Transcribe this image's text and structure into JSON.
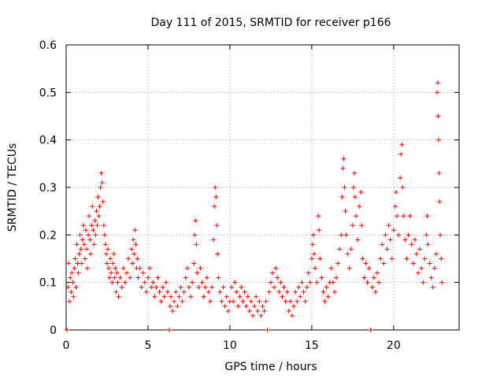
{
  "chart_data": {
    "type": "scatter",
    "title": "Day 111 of 2015, SRMTID for receiver p166",
    "xlabel": "GPS time / hours",
    "ylabel": "SRMTID / TECUs",
    "xlim": [
      0,
      24
    ],
    "ylim": [
      0,
      0.6
    ],
    "x_ticks": [
      0,
      5,
      10,
      15,
      20
    ],
    "x_tick_labels": [
      "0",
      "5",
      "10",
      "15",
      "20"
    ],
    "y_ticks": [
      0,
      0.1,
      0.2,
      0.3,
      0.4,
      0.5,
      0.6
    ],
    "y_tick_labels": [
      "0",
      "0.1",
      "0.2",
      "0.3",
      "0.4",
      "0.5",
      "0.6"
    ],
    "grid": true,
    "marker": "+",
    "marker_color": "#ff0000",
    "series": [
      {
        "name": "SRMTID",
        "points": [
          [
            0.05,
            0.0
          ],
          [
            0.1,
            0.09
          ],
          [
            0.15,
            0.14
          ],
          [
            0.2,
            0.06
          ],
          [
            0.25,
            0.11
          ],
          [
            0.3,
            0.08
          ],
          [
            0.35,
            0.12
          ],
          [
            0.4,
            0.1
          ],
          [
            0.45,
            0.07
          ],
          [
            0.5,
            0.13
          ],
          [
            0.55,
            0.15
          ],
          [
            0.6,
            0.09
          ],
          [
            0.65,
            0.18
          ],
          [
            0.7,
            0.14
          ],
          [
            0.75,
            0.12
          ],
          [
            0.8,
            0.16
          ],
          [
            0.85,
            0.2
          ],
          [
            0.9,
            0.17
          ],
          [
            0.95,
            0.14
          ],
          [
            1.0,
            0.19
          ],
          [
            1.05,
            0.22
          ],
          [
            1.1,
            0.18
          ],
          [
            1.15,
            0.15
          ],
          [
            1.2,
            0.21
          ],
          [
            1.25,
            0.17
          ],
          [
            1.3,
            0.13
          ],
          [
            1.35,
            0.2
          ],
          [
            1.4,
            0.24
          ],
          [
            1.45,
            0.19
          ],
          [
            1.5,
            0.16
          ],
          [
            1.55,
            0.22
          ],
          [
            1.6,
            0.26
          ],
          [
            1.65,
            0.21
          ],
          [
            1.7,
            0.18
          ],
          [
            1.75,
            0.23
          ],
          [
            1.8,
            0.2
          ],
          [
            1.85,
            0.25
          ],
          [
            1.9,
            0.22
          ],
          [
            1.95,
            0.28
          ],
          [
            2.0,
            0.24
          ],
          [
            2.05,
            0.26
          ],
          [
            2.1,
            0.3
          ],
          [
            2.15,
            0.33
          ],
          [
            2.2,
            0.31
          ],
          [
            2.25,
            0.27
          ],
          [
            2.3,
            0.22
          ],
          [
            2.35,
            0.2
          ],
          [
            2.4,
            0.18
          ],
          [
            2.45,
            0.16
          ],
          [
            2.5,
            0.14
          ],
          [
            2.55,
            0.17
          ],
          [
            2.6,
            0.13
          ],
          [
            2.65,
            0.11
          ],
          [
            2.7,
            0.15
          ],
          [
            2.75,
            0.12
          ],
          [
            2.8,
            0.1
          ],
          [
            2.85,
            0.14
          ],
          [
            2.9,
            0.16
          ],
          [
            2.95,
            0.11
          ],
          [
            3.0,
            0.13
          ],
          [
            3.05,
            0.08
          ],
          [
            3.1,
            0.12
          ],
          [
            3.15,
            0.1
          ],
          [
            3.2,
            0.07
          ],
          [
            3.3,
            0.11
          ],
          [
            3.4,
            0.09
          ],
          [
            3.5,
            0.13
          ],
          [
            3.6,
            0.1
          ],
          [
            3.7,
            0.12
          ],
          [
            3.8,
            0.15
          ],
          [
            3.9,
            0.11
          ],
          [
            4.0,
            0.17
          ],
          [
            4.05,
            0.14
          ],
          [
            4.1,
            0.19
          ],
          [
            4.15,
            0.16
          ],
          [
            4.2,
            0.21
          ],
          [
            4.25,
            0.18
          ],
          [
            4.3,
            0.13
          ],
          [
            4.35,
            0.15
          ],
          [
            4.4,
            0.11
          ],
          [
            4.5,
            0.13
          ],
          [
            4.6,
            0.09
          ],
          [
            4.7,
            0.12
          ],
          [
            4.8,
            0.1
          ],
          [
            4.9,
            0.08
          ],
          [
            5.0,
            0.11
          ],
          [
            5.1,
            0.13
          ],
          [
            5.2,
            0.09
          ],
          [
            5.3,
            0.1
          ],
          [
            5.4,
            0.07
          ],
          [
            5.5,
            0.09
          ],
          [
            5.6,
            0.11
          ],
          [
            5.7,
            0.08
          ],
          [
            5.8,
            0.06
          ],
          [
            5.9,
            0.09
          ],
          [
            6.0,
            0.07
          ],
          [
            6.1,
            0.1
          ],
          [
            6.2,
            0.08
          ],
          [
            6.3,
            0.0
          ],
          [
            6.35,
            0.05
          ],
          [
            6.4,
            0.07
          ],
          [
            6.5,
            0.04
          ],
          [
            6.6,
            0.06
          ],
          [
            6.7,
            0.08
          ],
          [
            6.8,
            0.05
          ],
          [
            6.9,
            0.07
          ],
          [
            7.0,
            0.09
          ],
          [
            7.1,
            0.06
          ],
          [
            7.2,
            0.08
          ],
          [
            7.3,
            0.11
          ],
          [
            7.4,
            0.13
          ],
          [
            7.5,
            0.09
          ],
          [
            7.6,
            0.07
          ],
          [
            7.7,
            0.1
          ],
          [
            7.8,
            0.14
          ],
          [
            7.85,
            0.2
          ],
          [
            7.9,
            0.23
          ],
          [
            7.95,
            0.18
          ],
          [
            8.0,
            0.12
          ],
          [
            8.1,
            0.09
          ],
          [
            8.2,
            0.13
          ],
          [
            8.3,
            0.1
          ],
          [
            8.4,
            0.07
          ],
          [
            8.5,
            0.09
          ],
          [
            8.6,
            0.11
          ],
          [
            8.7,
            0.08
          ],
          [
            8.8,
            0.06
          ],
          [
            8.9,
            0.09
          ],
          [
            9.0,
            0.19
          ],
          [
            9.05,
            0.26
          ],
          [
            9.1,
            0.3
          ],
          [
            9.15,
            0.28
          ],
          [
            9.2,
            0.22
          ],
          [
            9.25,
            0.16
          ],
          [
            9.3,
            0.11
          ],
          [
            9.4,
            0.08
          ],
          [
            9.5,
            0.06
          ],
          [
            9.6,
            0.09
          ],
          [
            9.7,
            0.05
          ],
          [
            9.8,
            0.07
          ],
          [
            9.9,
            0.04
          ],
          [
            10.0,
            0.06
          ],
          [
            10.1,
            0.09
          ],
          [
            10.2,
            0.06
          ],
          [
            10.3,
            0.1
          ],
          [
            10.4,
            0.08
          ],
          [
            10.5,
            0.05
          ],
          [
            10.6,
            0.07
          ],
          [
            10.7,
            0.09
          ],
          [
            10.8,
            0.06
          ],
          [
            10.9,
            0.08
          ],
          [
            11.0,
            0.05
          ],
          [
            11.1,
            0.07
          ],
          [
            11.2,
            0.04
          ],
          [
            11.3,
            0.06
          ],
          [
            11.4,
            0.03
          ],
          [
            11.5,
            0.05
          ],
          [
            11.6,
            0.07
          ],
          [
            11.7,
            0.04
          ],
          [
            11.8,
            0.06
          ],
          [
            11.9,
            0.03
          ],
          [
            12.0,
            0.05
          ],
          [
            12.1,
            0.04
          ],
          [
            12.2,
            0.06
          ],
          [
            12.3,
            0.0
          ],
          [
            12.4,
            0.08
          ],
          [
            12.5,
            0.1
          ],
          [
            12.6,
            0.12
          ],
          [
            12.7,
            0.09
          ],
          [
            12.8,
            0.13
          ],
          [
            12.9,
            0.11
          ],
          [
            13.0,
            0.08
          ],
          [
            13.1,
            0.1
          ],
          [
            13.2,
            0.07
          ],
          [
            13.3,
            0.09
          ],
          [
            13.4,
            0.06
          ],
          [
            13.5,
            0.08
          ],
          [
            13.6,
            0.04
          ],
          [
            13.7,
            0.06
          ],
          [
            13.8,
            0.03
          ],
          [
            13.9,
            0.05
          ],
          [
            14.0,
            0.08
          ],
          [
            14.1,
            0.06
          ],
          [
            14.2,
            0.09
          ],
          [
            14.3,
            0.07
          ],
          [
            14.4,
            0.1
          ],
          [
            14.5,
            0.08
          ],
          [
            14.6,
            0.06
          ],
          [
            14.7,
            0.09
          ],
          [
            14.8,
            0.12
          ],
          [
            14.9,
            0.1
          ],
          [
            15.0,
            0.15
          ],
          [
            15.05,
            0.18
          ],
          [
            15.1,
            0.2
          ],
          [
            15.15,
            0.16
          ],
          [
            15.2,
            0.13
          ],
          [
            15.3,
            0.1
          ],
          [
            15.4,
            0.24
          ],
          [
            15.45,
            0.21
          ],
          [
            15.5,
            0.15
          ],
          [
            15.6,
            0.11
          ],
          [
            15.7,
            0.08
          ],
          [
            15.8,
            0.06
          ],
          [
            15.9,
            0.09
          ],
          [
            16.0,
            0.07
          ],
          [
            16.1,
            0.1
          ],
          [
            16.2,
            0.13
          ],
          [
            16.3,
            0.1
          ],
          [
            16.4,
            0.08
          ],
          [
            16.5,
            0.11
          ],
          [
            16.6,
            0.14
          ],
          [
            16.7,
            0.17
          ],
          [
            16.8,
            0.2
          ],
          [
            16.85,
            0.28
          ],
          [
            16.9,
            0.34
          ],
          [
            16.95,
            0.36
          ],
          [
            17.0,
            0.3
          ],
          [
            17.05,
            0.25
          ],
          [
            17.1,
            0.2
          ],
          [
            17.2,
            0.16
          ],
          [
            17.3,
            0.13
          ],
          [
            17.4,
            0.17
          ],
          [
            17.5,
            0.22
          ],
          [
            17.55,
            0.3
          ],
          [
            17.6,
            0.33
          ],
          [
            17.65,
            0.28
          ],
          [
            17.7,
            0.24
          ],
          [
            17.8,
            0.19
          ],
          [
            17.9,
            0.26
          ],
          [
            18.0,
            0.29
          ],
          [
            18.05,
            0.22
          ],
          [
            18.1,
            0.15
          ],
          [
            18.2,
            0.11
          ],
          [
            18.3,
            0.14
          ],
          [
            18.4,
            0.1
          ],
          [
            18.5,
            0.13
          ],
          [
            18.6,
            0.0
          ],
          [
            18.7,
            0.09
          ],
          [
            18.8,
            0.11
          ],
          [
            18.9,
            0.08
          ],
          [
            19.0,
            0.12
          ],
          [
            19.1,
            0.1
          ],
          [
            19.2,
            0.15
          ],
          [
            19.3,
            0.18
          ],
          [
            19.4,
            0.14
          ],
          [
            19.5,
            0.2
          ],
          [
            19.6,
            0.17
          ],
          [
            19.7,
            0.22
          ],
          [
            19.8,
            0.19
          ],
          [
            19.9,
            0.15
          ],
          [
            20.0,
            0.21
          ],
          [
            20.1,
            0.26
          ],
          [
            20.15,
            0.29
          ],
          [
            20.2,
            0.24
          ],
          [
            20.3,
            0.2
          ],
          [
            20.4,
            0.32
          ],
          [
            20.45,
            0.37
          ],
          [
            20.5,
            0.39
          ],
          [
            20.55,
            0.3
          ],
          [
            20.6,
            0.24
          ],
          [
            20.7,
            0.19
          ],
          [
            20.8,
            0.15
          ],
          [
            20.9,
            0.2
          ],
          [
            21.0,
            0.24
          ],
          [
            21.1,
            0.18
          ],
          [
            21.2,
            0.14
          ],
          [
            21.3,
            0.19
          ],
          [
            21.4,
            0.16
          ],
          [
            21.5,
            0.12
          ],
          [
            21.6,
            0.17
          ],
          [
            21.7,
            0.13
          ],
          [
            21.8,
            0.1
          ],
          [
            21.9,
            0.15
          ],
          [
            22.0,
            0.2
          ],
          [
            22.05,
            0.24
          ],
          [
            22.1,
            0.18
          ],
          [
            22.2,
            0.14
          ],
          [
            22.3,
            0.11
          ],
          [
            22.4,
            0.09
          ],
          [
            22.5,
            0.13
          ],
          [
            22.6,
            0.16
          ],
          [
            22.65,
            0.5
          ],
          [
            22.7,
            0.52
          ],
          [
            22.72,
            0.45
          ],
          [
            22.75,
            0.4
          ],
          [
            22.78,
            0.33
          ],
          [
            22.8,
            0.27
          ],
          [
            22.85,
            0.2
          ],
          [
            22.9,
            0.15
          ],
          [
            22.95,
            0.1
          ]
        ]
      }
    ]
  }
}
